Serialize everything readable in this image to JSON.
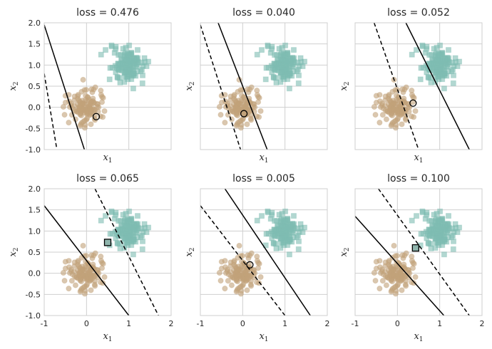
{
  "chart_data": [
    {
      "type": "scatter",
      "title": "loss = 0.476",
      "xlabel": "x1",
      "ylabel": "x2",
      "xlim": [
        -1,
        2
      ],
      "ylim": [
        -1,
        2
      ],
      "xticks": [
        "-1",
        "0",
        "1",
        "2"
      ],
      "yticks": [
        "-1.0",
        "-0.5",
        "0.0",
        "0.5",
        "1.0",
        "1.5",
        "2.0"
      ],
      "show_xticks": false,
      "show_yticks": true,
      "grid": true,
      "clusters": [
        {
          "class": 0,
          "marker": "circle",
          "color": "#c2a27a",
          "center": [
            0.0,
            0.0
          ],
          "spread": 0.2,
          "count": 130
        },
        {
          "class": 1,
          "marker": "square",
          "color": "#7fbcb2",
          "center": [
            1.0,
            1.0
          ],
          "spread": 0.2,
          "count": 130
        }
      ],
      "lines": [
        {
          "style": "solid",
          "points": [
            [
              -1,
              1.95
            ],
            [
              -0.05,
              -1.0
            ]
          ]
        },
        {
          "style": "dashed",
          "points": [
            [
              -1,
              0.8
            ],
            [
              -0.7,
              -1.0
            ]
          ]
        }
      ],
      "highlight": {
        "marker": "circle",
        "x": 0.23,
        "y": -0.22
      }
    },
    {
      "type": "scatter",
      "title": "loss = 0.040",
      "xlabel": "x1",
      "ylabel": "x2",
      "xlim": [
        -1,
        2
      ],
      "ylim": [
        -1,
        2
      ],
      "xticks": [
        "-1",
        "0",
        "1",
        "2"
      ],
      "yticks": [
        "-1.0",
        "-0.5",
        "0.0",
        "0.5",
        "1.0",
        "1.5",
        "2.0"
      ],
      "show_xticks": false,
      "show_yticks": false,
      "grid": true,
      "clusters": [
        {
          "class": 0,
          "marker": "circle",
          "color": "#c2a27a",
          "center": [
            0.0,
            0.0
          ],
          "spread": 0.2,
          "count": 130
        },
        {
          "class": 1,
          "marker": "square",
          "color": "#7fbcb2",
          "center": [
            1.0,
            1.0
          ],
          "spread": 0.2,
          "count": 130
        }
      ],
      "lines": [
        {
          "style": "solid",
          "points": [
            [
              -0.58,
              2.0
            ],
            [
              0.58,
              -1.0
            ]
          ]
        },
        {
          "style": "dashed",
          "points": [
            [
              -1,
              1.95
            ],
            [
              -0.05,
              -1.0
            ]
          ]
        }
      ],
      "highlight": {
        "marker": "circle",
        "x": 0.03,
        "y": -0.15
      }
    },
    {
      "type": "scatter",
      "title": "loss = 0.052",
      "xlabel": "x1",
      "ylabel": "x2",
      "xlim": [
        -1,
        2
      ],
      "ylim": [
        -1,
        2
      ],
      "xticks": [
        "-1",
        "0",
        "1",
        "2"
      ],
      "yticks": [
        "-1.0",
        "-0.5",
        "0.0",
        "0.5",
        "1.0",
        "1.5",
        "2.0"
      ],
      "show_xticks": false,
      "show_yticks": false,
      "grid": true,
      "clusters": [
        {
          "class": 0,
          "marker": "circle",
          "color": "#c2a27a",
          "center": [
            0.0,
            0.0
          ],
          "spread": 0.2,
          "count": 130
        },
        {
          "class": 1,
          "marker": "square",
          "color": "#7fbcb2",
          "center": [
            1.0,
            1.0
          ],
          "spread": 0.2,
          "count": 130
        }
      ],
      "lines": [
        {
          "style": "solid",
          "points": [
            [
              0.2,
              2.0
            ],
            [
              1.7,
              -1.0
            ]
          ]
        },
        {
          "style": "dashed",
          "points": [
            [
              -0.55,
              2.0
            ],
            [
              0.5,
              -1.0
            ]
          ]
        }
      ],
      "highlight": {
        "marker": "circle",
        "x": 0.37,
        "y": 0.1
      }
    },
    {
      "type": "scatter",
      "title": "loss = 0.065",
      "xlabel": "x1",
      "ylabel": "x2",
      "xlim": [
        -1,
        2
      ],
      "ylim": [
        -1,
        2
      ],
      "xticks": [
        "-1",
        "0",
        "1",
        "2"
      ],
      "yticks": [
        "-1.0",
        "-0.5",
        "0.0",
        "0.5",
        "1.0",
        "1.5",
        "2.0"
      ],
      "show_xticks": true,
      "show_yticks": true,
      "grid": true,
      "clusters": [
        {
          "class": 0,
          "marker": "circle",
          "color": "#c2a27a",
          "center": [
            0.0,
            0.0
          ],
          "spread": 0.2,
          "count": 130
        },
        {
          "class": 1,
          "marker": "square",
          "color": "#7fbcb2",
          "center": [
            1.0,
            1.0
          ],
          "spread": 0.2,
          "count": 130
        }
      ],
      "lines": [
        {
          "style": "solid",
          "points": [
            [
              -1,
              1.6
            ],
            [
              1.0,
              -1.0
            ]
          ]
        },
        {
          "style": "dashed",
          "points": [
            [
              0.2,
              2.0
            ],
            [
              1.7,
              -1.0
            ]
          ]
        }
      ],
      "highlight": {
        "marker": "square",
        "x": 0.5,
        "y": 0.73
      }
    },
    {
      "type": "scatter",
      "title": "loss = 0.005",
      "xlabel": "x1",
      "ylabel": "x2",
      "xlim": [
        -1,
        2
      ],
      "ylim": [
        -1,
        2
      ],
      "xticks": [
        "-1",
        "0",
        "1",
        "2"
      ],
      "yticks": [
        "-1.0",
        "-0.5",
        "0.0",
        "0.5",
        "1.0",
        "1.5",
        "2.0"
      ],
      "show_xticks": true,
      "show_yticks": false,
      "grid": true,
      "clusters": [
        {
          "class": 0,
          "marker": "circle",
          "color": "#c2a27a",
          "center": [
            0.0,
            0.0
          ],
          "spread": 0.2,
          "count": 130
        },
        {
          "class": 1,
          "marker": "square",
          "color": "#7fbcb2",
          "center": [
            1.0,
            1.0
          ],
          "spread": 0.2,
          "count": 130
        }
      ],
      "lines": [
        {
          "style": "solid",
          "points": [
            [
              -0.42,
              2.0
            ],
            [
              1.6,
              -1.0
            ]
          ]
        },
        {
          "style": "dashed",
          "points": [
            [
              -1,
              1.6
            ],
            [
              1.0,
              -1.0
            ]
          ]
        }
      ],
      "highlight": {
        "marker": "circle",
        "x": 0.17,
        "y": 0.2
      }
    },
    {
      "type": "scatter",
      "title": "loss = 0.100",
      "xlabel": "x1",
      "ylabel": "x2",
      "xlim": [
        -1,
        2
      ],
      "ylim": [
        -1,
        2
      ],
      "xticks": [
        "-1",
        "0",
        "1",
        "2"
      ],
      "yticks": [
        "-1.0",
        "-0.5",
        "0.0",
        "0.5",
        "1.0",
        "1.5",
        "2.0"
      ],
      "show_xticks": true,
      "show_yticks": false,
      "grid": true,
      "clusters": [
        {
          "class": 0,
          "marker": "circle",
          "color": "#c2a27a",
          "center": [
            0.0,
            0.0
          ],
          "spread": 0.2,
          "count": 130
        },
        {
          "class": 1,
          "marker": "square",
          "color": "#7fbcb2",
          "center": [
            1.0,
            1.0
          ],
          "spread": 0.2,
          "count": 130
        }
      ],
      "lines": [
        {
          "style": "solid",
          "points": [
            [
              -1,
              1.35
            ],
            [
              1.1,
              -1.0
            ]
          ]
        },
        {
          "style": "dashed",
          "points": [
            [
              -0.45,
              2.0
            ],
            [
              1.7,
              -1.0
            ]
          ]
        }
      ],
      "highlight": {
        "marker": "square",
        "x": 0.43,
        "y": 0.6
      }
    }
  ]
}
